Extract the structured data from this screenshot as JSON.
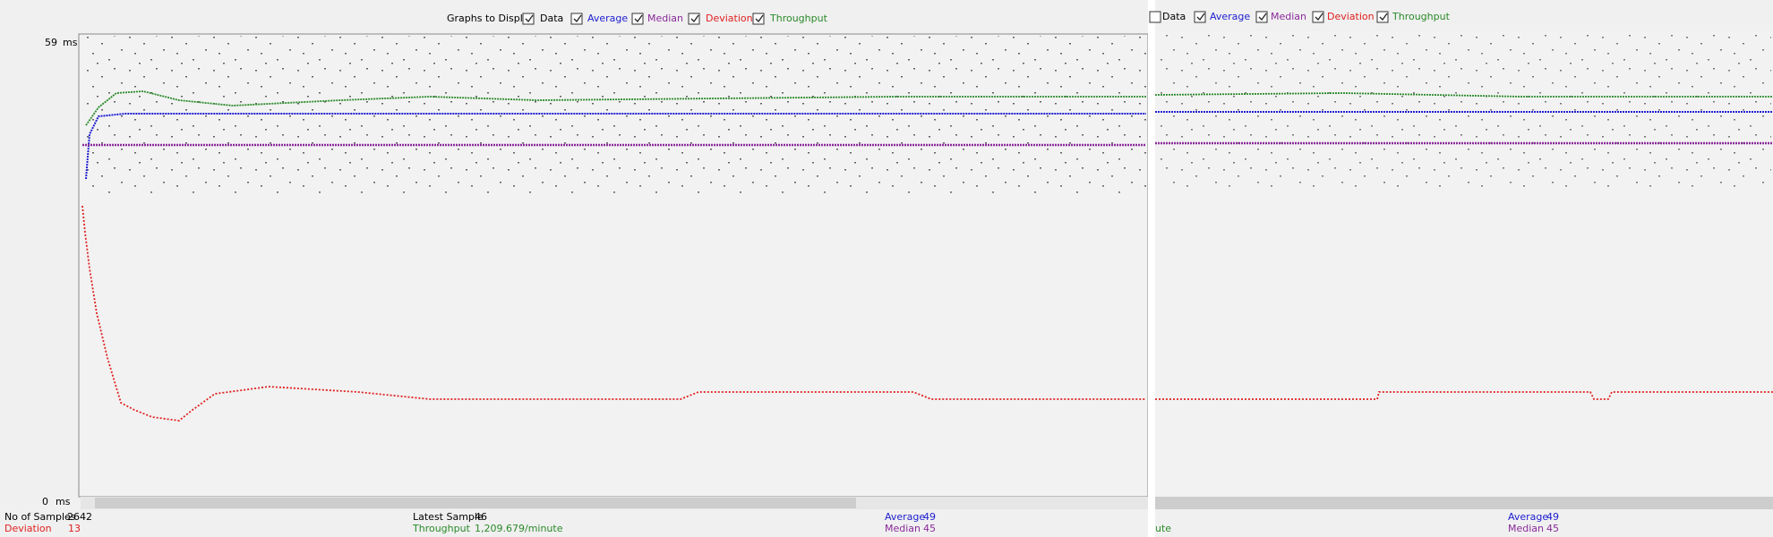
{
  "left": {
    "graphs_label": "Graphs to Display",
    "checkboxes": [
      "Data",
      "Average",
      "Median",
      "Deviation",
      "Throughput"
    ],
    "y_axis": {
      "max": 59,
      "min": 0,
      "unit": "ms"
    },
    "stats": {
      "samples_label": "No of Samples",
      "samples": 2642,
      "deviation_label": "Deviation",
      "deviation": 13,
      "latest_label": "Latest Sample",
      "latest": 46,
      "throughput_label": "Throughput",
      "throughput": "1,209.679/minute",
      "average_label": "Average",
      "average": 49,
      "median_label": "Median",
      "median": 45
    }
  },
  "right": {
    "checkboxes": [
      "Data",
      "Average",
      "Median",
      "Deviation",
      "Throughput"
    ],
    "stats": {
      "throughput_fragment": "ute",
      "average_label": "Average",
      "average": 49,
      "median_label": "Median",
      "median": 45
    }
  }
}
